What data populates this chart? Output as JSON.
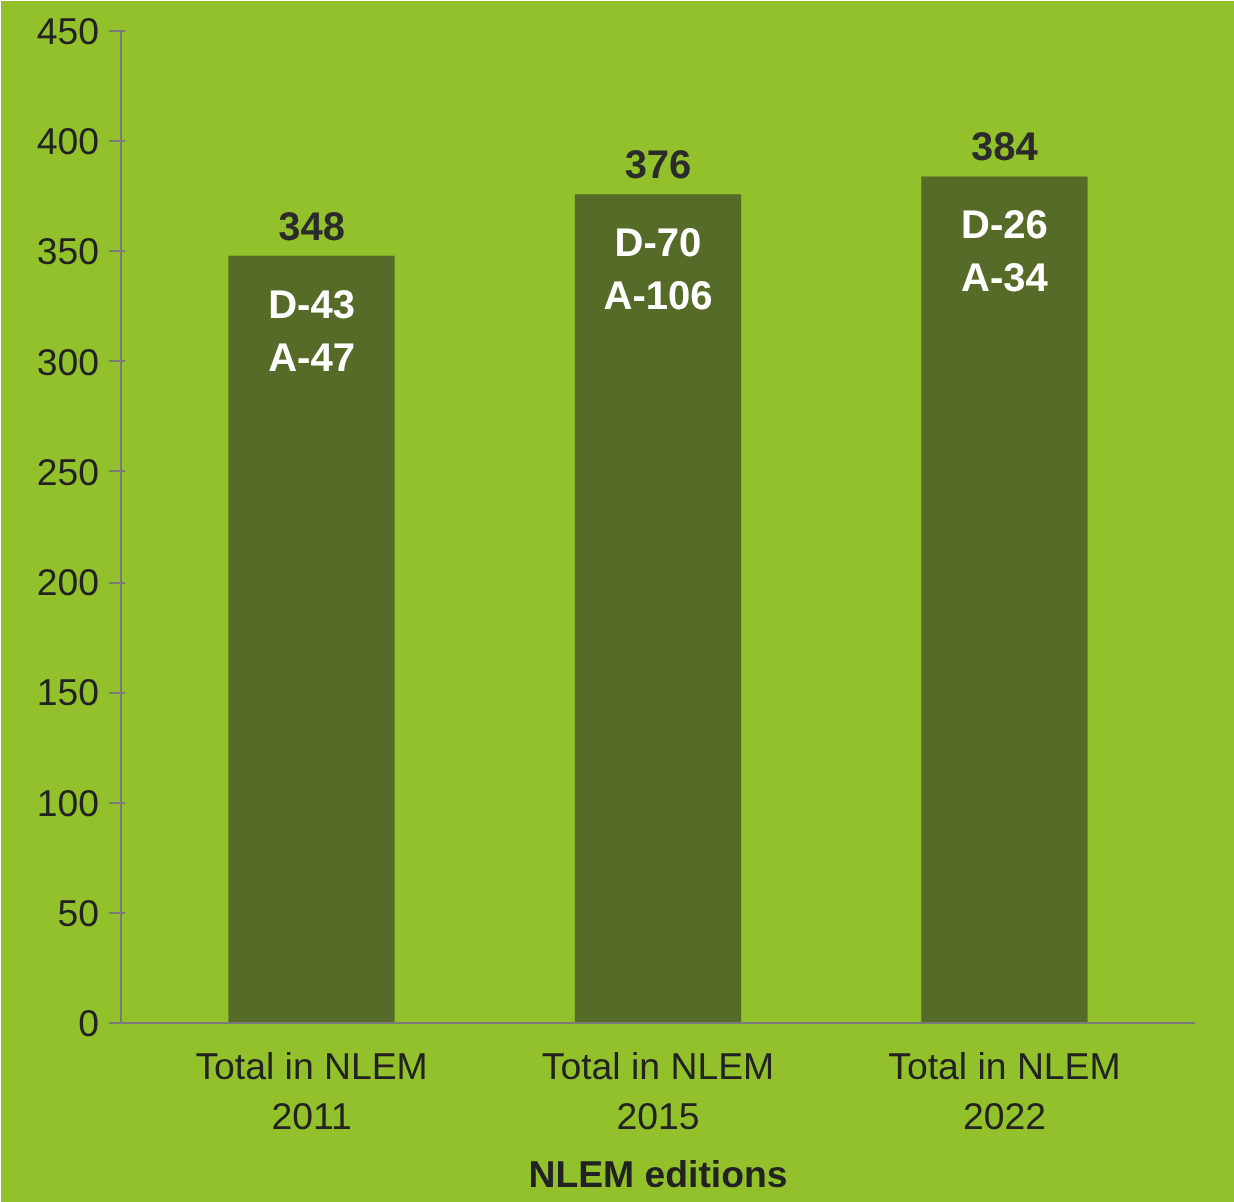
{
  "chart_data": {
    "type": "bar",
    "xlabel": "NLEM editions",
    "categories": [
      "Total in NLEM\n2011",
      "Total in NLEM\n2015",
      "Total in NLEM\n2022"
    ],
    "values": [
      348,
      376,
      384
    ],
    "color": "#566b27",
    "data_labels": true,
    "ylim": [
      0,
      450
    ],
    "yticks": [
      0,
      50,
      100,
      150,
      200,
      250,
      300,
      350,
      400,
      450
    ],
    "grid": false,
    "annotations": [
      "D-43\nA-47",
      "D-70\nA-106",
      "D-26\nA-34"
    ]
  }
}
